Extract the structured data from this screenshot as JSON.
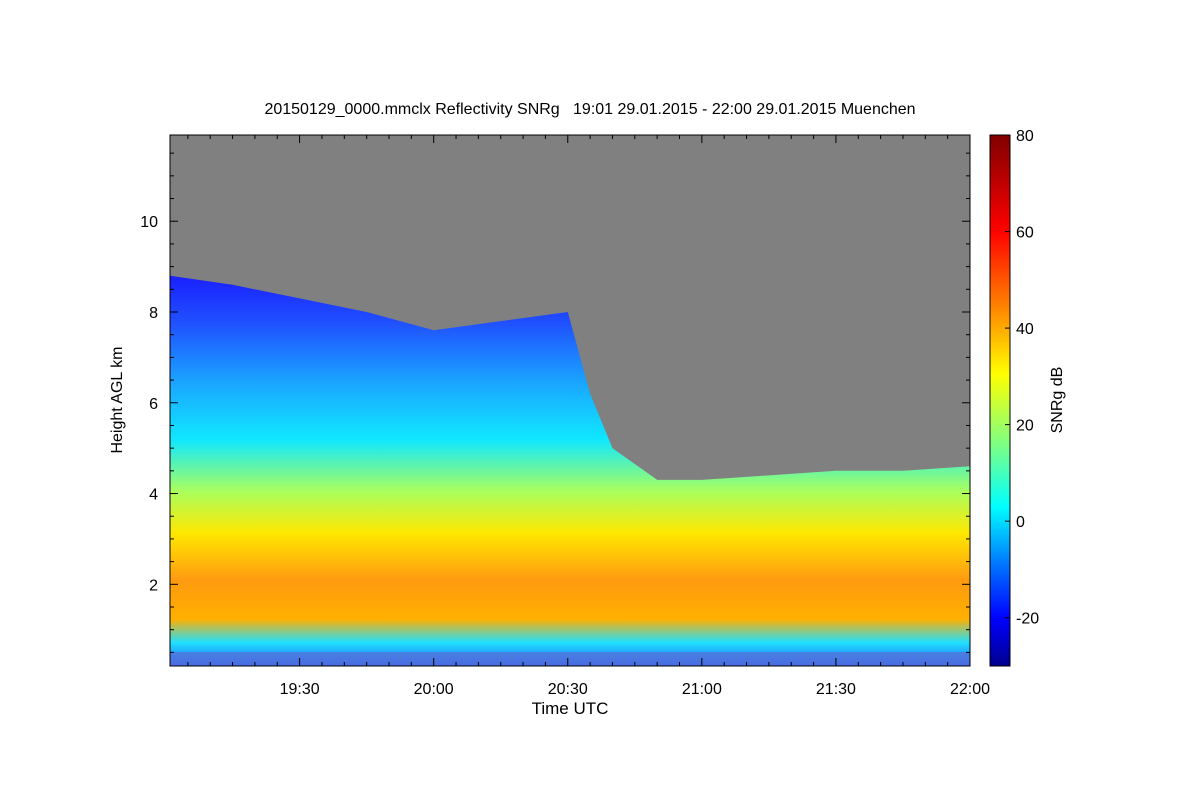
{
  "chart_data": {
    "type": "heatmap",
    "title": "20150129_0000.mmclx Reflectivity SNRg   19:01 29.01.2015 - 22:00 29.01.2015 Muenchen",
    "xlabel": "Time UTC",
    "ylabel": "Height AGL km",
    "colorbar_label": "SNRg dB",
    "xlim": [
      "19:01",
      "22:00"
    ],
    "x_ticks": [
      "19:30",
      "20:00",
      "20:30",
      "21:00",
      "21:30",
      "22:00"
    ],
    "ylim": [
      0.2,
      11.9
    ],
    "y_ticks": [
      2,
      4,
      6,
      8,
      10
    ],
    "colorbar_range": [
      -30,
      80
    ],
    "colorbar_ticks": [
      -20,
      0,
      20,
      40,
      60,
      80
    ],
    "no_signal_color": "#808080",
    "colormap": [
      "#00008f",
      "#0000ff",
      "#0080ff",
      "#00ffff",
      "#80ff80",
      "#ffff00",
      "#ff8000",
      "#ff0000",
      "#800000"
    ],
    "cloud_top_km": {
      "times": [
        "19:01",
        "19:15",
        "19:30",
        "19:45",
        "20:00",
        "20:15",
        "20:30",
        "20:35",
        "20:40",
        "20:50",
        "21:00",
        "21:15",
        "21:30",
        "21:45",
        "22:00"
      ],
      "values": [
        8.8,
        8.6,
        8.3,
        8.0,
        7.6,
        7.8,
        8.0,
        6.2,
        5.0,
        4.3,
        4.3,
        4.4,
        4.5,
        4.5,
        4.6
      ]
    },
    "core_layer_km": [
      1.2,
      2.4
    ],
    "grid": false,
    "legend": "colorbar-right"
  }
}
